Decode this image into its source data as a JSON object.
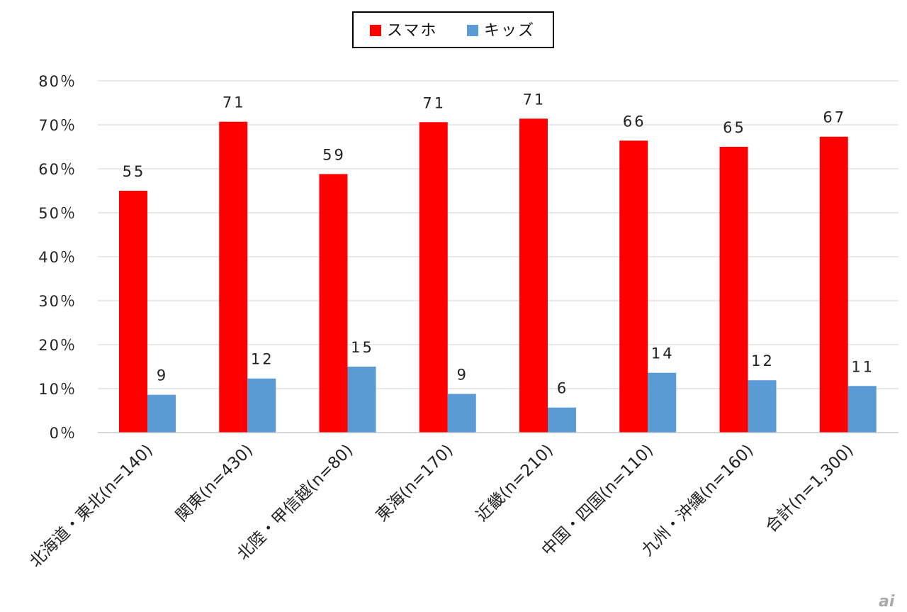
{
  "chart_data": {
    "type": "bar",
    "categories": [
      "北海道・東北(n=140)",
      "関東(n=430)",
      "北陸・甲信越(n=80)",
      "東海(n=170)",
      "近畿(n=210)",
      "中国・四国(n=110)",
      "九州・沖縄(n=160)",
      "合計(n=1,300)"
    ],
    "series": [
      {
        "name": "スマホ",
        "color": "#ff0000",
        "values": [
          55,
          70.7,
          58.8,
          70.6,
          71.4,
          66.4,
          65.0,
          67.3
        ],
        "labels": [
          "55",
          "71",
          "59",
          "71",
          "71",
          "66",
          "65",
          "67"
        ]
      },
      {
        "name": "キッズ",
        "color": "#5b9bd5",
        "values": [
          8.6,
          12.3,
          15.0,
          8.8,
          5.7,
          13.6,
          11.9,
          10.6
        ],
        "labels": [
          "9",
          "12",
          "15",
          "9",
          "6",
          "14",
          "12",
          "11"
        ]
      }
    ],
    "yticks": [
      "0％",
      "10％",
      "20％",
      "30％",
      "40％",
      "50％",
      "60％",
      "70％",
      "80％"
    ],
    "ylim": [
      0,
      80
    ],
    "grid": true,
    "legend": "top-center",
    "title": "",
    "xlabel": "",
    "ylabel": ""
  },
  "watermark": "ai"
}
